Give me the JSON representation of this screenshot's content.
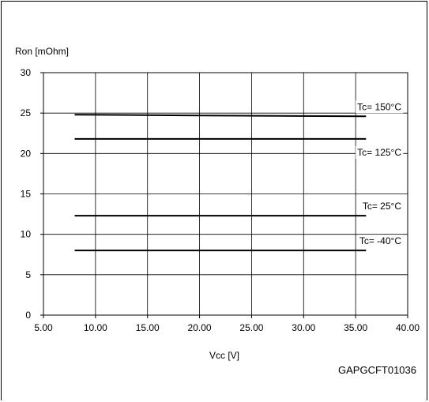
{
  "chart_data": {
    "type": "line",
    "ylabel": "Ron [mOhm]",
    "xlabel": "Vcc [V]",
    "xlim": [
      5,
      40
    ],
    "ylim": [
      0,
      30
    ],
    "x_ticks": [
      5,
      10,
      15,
      20,
      25,
      30,
      35,
      40
    ],
    "x_tick_labels": [
      "5.00",
      "10.00",
      "15.00",
      "20.00",
      "25.00",
      "30.00",
      "35.00",
      "40.00"
    ],
    "y_ticks": [
      0,
      5,
      10,
      15,
      20,
      25,
      30
    ],
    "y_tick_labels": [
      "0",
      "5",
      "10",
      "15",
      "20",
      "25",
      "30"
    ],
    "grid": true,
    "line_color": "#000000",
    "series": [
      {
        "name": "Tc= 150°C",
        "x": [
          8,
          20,
          36
        ],
        "y": [
          24.8,
          24.7,
          24.6
        ]
      },
      {
        "name": "Tc= 125°C",
        "x": [
          8,
          36
        ],
        "y": [
          21.8,
          21.8
        ]
      },
      {
        "name": "Tc= 25°C",
        "x": [
          8,
          36
        ],
        "y": [
          12.3,
          12.3
        ]
      },
      {
        "name": "Tc= -40°C",
        "x": [
          8,
          36
        ],
        "y": [
          8.0,
          8.0
        ]
      }
    ],
    "figure_code": "GAPGCFT01036"
  }
}
